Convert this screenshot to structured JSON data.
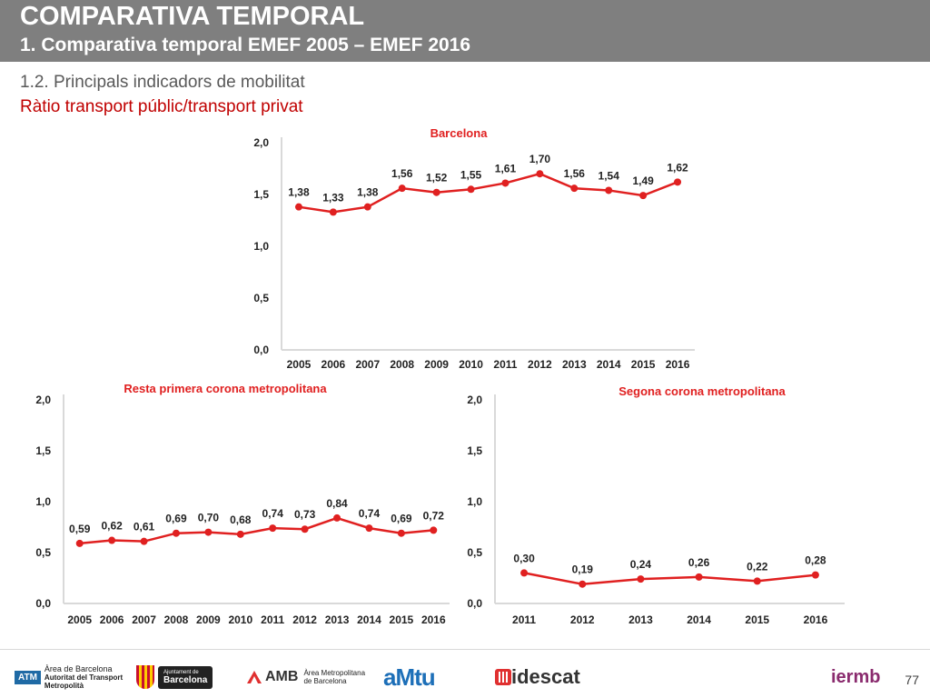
{
  "header": {
    "title": "COMPARATIVA TEMPORAL",
    "subtitle": "1. Comparativa temporal EMEF 2005 – EMEF 2016"
  },
  "section": {
    "heading": "1.2. Principals indicadors de mobilitat",
    "subheading": "Ràtio transport públic/transport privat"
  },
  "colors": {
    "series": "#e02020",
    "header": "#7f7f7f",
    "accent": "#c00000"
  },
  "chart_data": [
    {
      "type": "line",
      "title": "Barcelona",
      "x": [
        "2005",
        "2006",
        "2007",
        "2008",
        "2009",
        "2010",
        "2011",
        "2012",
        "2013",
        "2014",
        "2015",
        "2016"
      ],
      "values": [
        1.38,
        1.33,
        1.38,
        1.56,
        1.52,
        1.55,
        1.61,
        1.7,
        1.56,
        1.54,
        1.49,
        1.62
      ],
      "value_labels": [
        "1,38",
        "1,33",
        "1,38",
        "1,56",
        "1,52",
        "1,55",
        "1,61",
        "1,70",
        "1,56",
        "1,54",
        "1,49",
        "1,62"
      ],
      "yticks": [
        "0,0",
        "0,5",
        "1,0",
        "1,5",
        "2,0"
      ],
      "ylim": [
        0,
        2
      ],
      "grid": false
    },
    {
      "type": "line",
      "title": "Resta primera corona metropolitana",
      "x": [
        "2005",
        "2006",
        "2007",
        "2008",
        "2009",
        "2010",
        "2011",
        "2012",
        "2013",
        "2014",
        "2015",
        "2016"
      ],
      "values": [
        0.59,
        0.62,
        0.61,
        0.69,
        0.7,
        0.68,
        0.74,
        0.73,
        0.84,
        0.74,
        0.69,
        0.72
      ],
      "value_labels": [
        "0,59",
        "0,62",
        "0,61",
        "0,69",
        "0,70",
        "0,68",
        "0,74",
        "0,73",
        "0,84",
        "0,74",
        "0,69",
        "0,72"
      ],
      "yticks": [
        "0,0",
        "0,5",
        "1,0",
        "1,5",
        "2,0"
      ],
      "ylim": [
        0,
        2
      ],
      "grid": false
    },
    {
      "type": "line",
      "title": "Segona corona metropolitana",
      "x": [
        "2011",
        "2012",
        "2013",
        "2014",
        "2015",
        "2016"
      ],
      "values": [
        0.3,
        0.19,
        0.24,
        0.26,
        0.22,
        0.28
      ],
      "value_labels": [
        "0,30",
        "0,19",
        "0,24",
        "0,26",
        "0,22",
        "0,28"
      ],
      "yticks": [
        "0,0",
        "0,5",
        "1,0",
        "1,5",
        "2,0"
      ],
      "ylim": [
        0,
        2
      ],
      "grid": false
    }
  ],
  "footer": {
    "page_number": "77",
    "logos": {
      "atm_short": "ATM",
      "atm_line1": "Àrea de Barcelona",
      "atm_line2": "Autoritat del Transport",
      "atm_line3": "Metropolità",
      "ajuntament_line1": "Ajuntament de",
      "ajuntament_line2": "Barcelona",
      "amb_short": "AMB",
      "amb_line1": "Àrea Metropolitana",
      "amb_line2": "de Barcelona",
      "amtu": "aMtu",
      "idescat": "idescat",
      "iermb": "iermb"
    }
  }
}
